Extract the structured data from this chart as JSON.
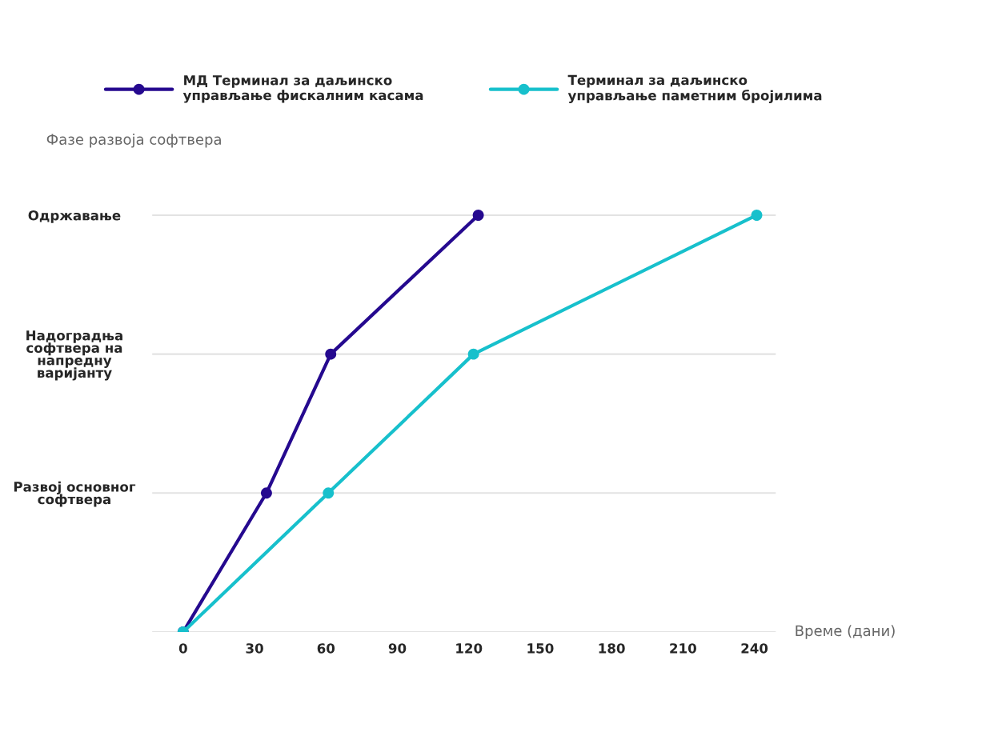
{
  "chart_data": {
    "type": "line",
    "orientation": "horizontal",
    "xlabel": "Време (дани)",
    "ylabel": "Фазе развоја софтвера",
    "xlim": [
      -13,
      249
    ],
    "xticks": [
      0,
      30,
      60,
      90,
      120,
      150,
      180,
      210,
      240
    ],
    "categories": [
      "Одржавање",
      "Надоградња\nсофтвера на\nнапредну\nваријанту",
      "Развој основног\nсофтвера",
      null
    ],
    "grid": "y",
    "legend": "top",
    "marker": "circle",
    "line_style": "solid",
    "series": [
      {
        "name": "МД Терминал за даљинско\nуправљање фискалним касама",
        "color": "#25098f",
        "values": [
          124,
          62,
          35,
          0
        ]
      },
      {
        "name": "Терминал за даљинско\nуправљање паметним бројилима",
        "color": "#17c0cc",
        "values": [
          241,
          122,
          61,
          0
        ]
      }
    ]
  }
}
